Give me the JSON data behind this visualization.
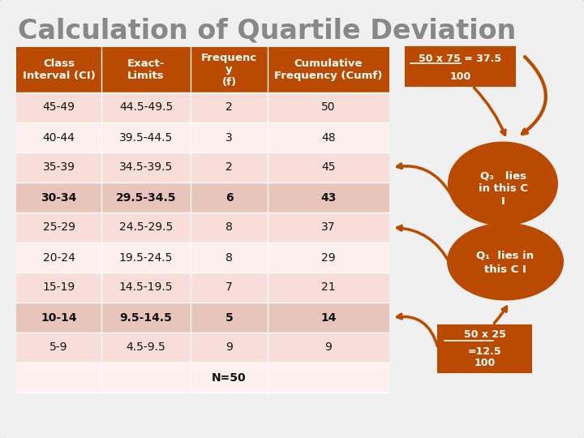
{
  "title": "Calculation of Quartile Deviation",
  "title_color": "#888888",
  "background_color": "#f0f0f0",
  "border_color": "#cccccc",
  "header_bg": "#b94a00",
  "header_text_color": "#ffffff",
  "row_bg_light": "#f9ddd8",
  "row_bg_lighter": "#fdf0ee",
  "bold_row_bg": "#e8c5bb",
  "orange_color": "#b94a00",
  "col_headers": [
    "Class\nInterval (CI)",
    "Exact-\nLimits",
    "Frequenc\ny\n(f)",
    "Cumulative\nFrequency (Cumf)"
  ],
  "rows": [
    [
      "45-49",
      "44.5-49.5",
      "2",
      "50",
      false
    ],
    [
      "40-44",
      "39.5-44.5",
      "3",
      "48",
      false
    ],
    [
      "35-39",
      "34.5-39.5",
      "2",
      "45",
      false
    ],
    [
      "30-34",
      "29.5-34.5",
      "6",
      "43",
      true
    ],
    [
      "25-29",
      "24.5-29.5",
      "8",
      "37",
      false
    ],
    [
      "20-24",
      "19.5-24.5",
      "8",
      "29",
      false
    ],
    [
      "15-19",
      "14.5-19.5",
      "7",
      "21",
      false
    ],
    [
      "10-14",
      "9.5-14.5",
      "5",
      "14",
      true
    ],
    [
      "5-9",
      "4.5-9.5",
      "9",
      "9",
      false
    ]
  ],
  "total_label": "N=50",
  "annotation_top_line1": "50 x 75 = 37.5",
  "annotation_top_line2": "100",
  "annotation_q3_line1": "Q₃   lies",
  "annotation_q3_line2": "in this C",
  "annotation_q3_line3": "I",
  "annotation_q1_line1": "Q₁  lies in",
  "annotation_q1_line2": "this C I",
  "annotation_bot_line1": "50 x 25",
  "annotation_bot_line2": "=12.5",
  "annotation_bot_line3": "100"
}
